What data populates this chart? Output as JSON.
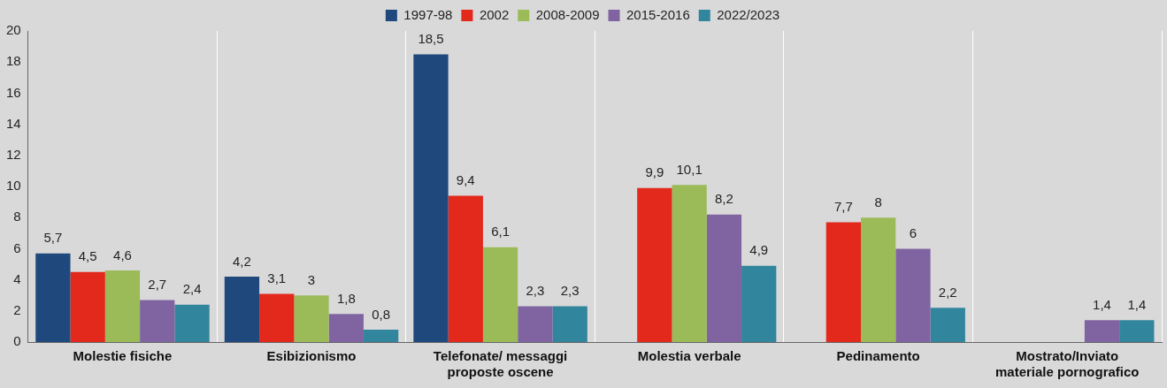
{
  "chart_data": {
    "type": "bar",
    "categories": [
      "Molestie fisiche",
      "Esibizionismo",
      "Telefonate/ messaggi proposte oscene",
      "Molestia verbale",
      "Pedinamento",
      "Mostrato/Inviato materiale pornografico"
    ],
    "series": [
      {
        "name": "1997-98",
        "color": "#1f497d",
        "values": [
          5.7,
          4.2,
          18.5,
          null,
          null,
          null
        ],
        "value_labels": [
          "5,7",
          "4,2",
          "18,5",
          null,
          null,
          null
        ]
      },
      {
        "name": "2002",
        "color": "#e3281c",
        "values": [
          4.5,
          3.1,
          9.4,
          9.9,
          7.7,
          null
        ],
        "value_labels": [
          "4,5",
          "3,1",
          "9,4",
          "9,9",
          "7,7",
          null
        ]
      },
      {
        "name": "2008-2009",
        "color": "#9bbb59",
        "values": [
          4.6,
          3,
          6.1,
          10.1,
          8,
          null
        ],
        "value_labels": [
          "4,6",
          "3",
          "6,1",
          "10,1",
          "8",
          null
        ]
      },
      {
        "name": "2015-2016",
        "color": "#8064a2",
        "values": [
          2.7,
          1.8,
          2.3,
          8.2,
          6,
          1.4
        ],
        "value_labels": [
          "2,7",
          "1,8",
          "2,3",
          "8,2",
          "6",
          "1,4"
        ]
      },
      {
        "name": "2022/2023",
        "color": "#31859c",
        "values": [
          2.4,
          0.8,
          2.3,
          4.9,
          2.2,
          1.4
        ],
        "value_labels": [
          "2,4",
          "0,8",
          "2,3",
          "4,9",
          "2,2",
          "1,4"
        ]
      }
    ],
    "ylim": [
      0,
      20
    ],
    "yticks": [
      0,
      2,
      4,
      6,
      8,
      10,
      12,
      14,
      16,
      18,
      20
    ],
    "grid": "x",
    "legend": "top"
  }
}
